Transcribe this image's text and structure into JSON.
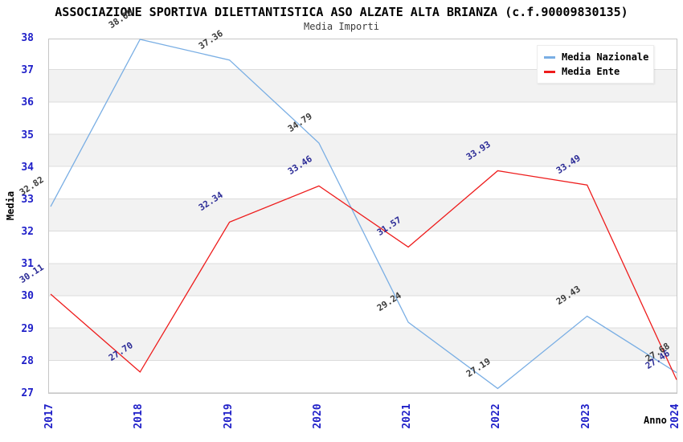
{
  "chart_data": {
    "type": "line",
    "title": "ASSOCIAZIONE SPORTIVA DILETTANTISTICA ASO ALZATE ALTA BRIANZA (c.f.90009830135)",
    "subtitle": "Media Importi",
    "xlabel": "Anno",
    "ylabel": "Media",
    "categories": [
      "2017",
      "2018",
      "2019",
      "2020",
      "2021",
      "2022",
      "2023",
      "2024"
    ],
    "ylim": [
      27,
      38
    ],
    "ytick_step": 1,
    "grid": true,
    "band_fill": true,
    "legend_position": "top-right",
    "series": [
      {
        "name": "Media Nazionale",
        "color": "#79aee4",
        "label_color": "#3a3a3a",
        "values": [
          32.82,
          38.0,
          37.36,
          34.79,
          29.24,
          27.19,
          29.43,
          27.68
        ]
      },
      {
        "name": "Media Ente",
        "color": "#ee1c1c",
        "label_color": "#2b2b96",
        "values": [
          30.11,
          27.7,
          32.34,
          33.46,
          31.57,
          33.93,
          33.49,
          27.46
        ]
      }
    ],
    "colors": {
      "tick_label": "#1f1fc8",
      "gridline": "#dcdcdc",
      "band_gray": "#f2f2f2",
      "band_white": "#ffffff",
      "plot_border": "#c6c6c6",
      "title": "#000000",
      "subtitle": "#3c3c3c"
    }
  }
}
